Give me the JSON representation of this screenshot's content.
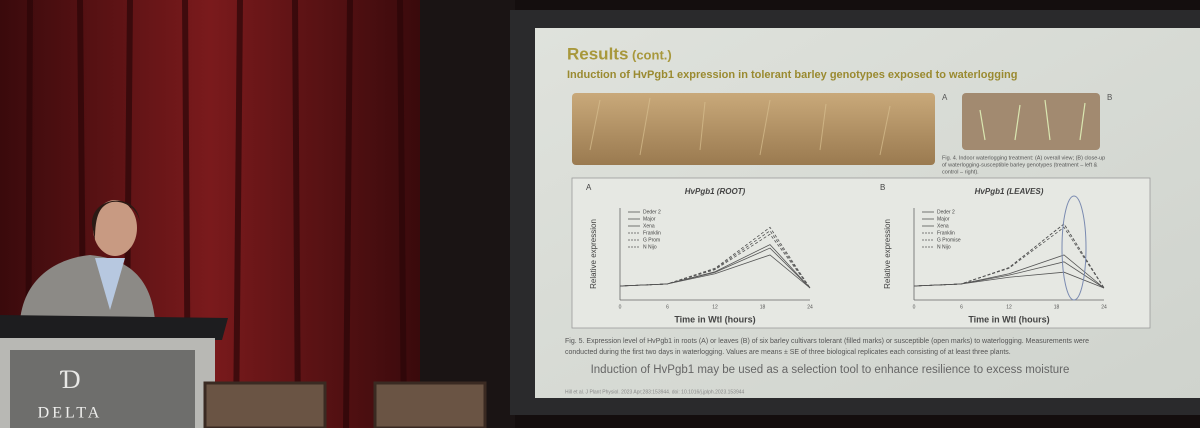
{
  "slide": {
    "title": "Results",
    "title_suffix": "(cont.)",
    "subtitle": "Induction of HvPgb1 expression in tolerant barley genotypes exposed to waterlogging",
    "photo_labels": [
      "A",
      "B"
    ],
    "fig4_caption": [
      "Fig. 4. Indoor waterlogging treatment: (A) overall view; (B) close-up",
      "of waterlogging-susceptible barley genotypes (treatment – left &",
      "control – right)."
    ],
    "panels": [
      {
        "label": "A",
        "title": "HvPgb1 (ROOT)",
        "y_label": "Relative expression",
        "x_label": "Time in Wtl (hours)",
        "x_ticks": [
          "0",
          "6",
          "12",
          "18",
          "24"
        ],
        "legend": [
          "Deder 2",
          "Major",
          "Xena",
          "Franklin",
          "G Prom",
          "N Nijo"
        ]
      },
      {
        "label": "B",
        "title": "HvPgb1 (LEAVES)",
        "y_label": "Relative expression",
        "x_label": "Time in Wtl (hours)",
        "x_ticks": [
          "0",
          "6",
          "12",
          "18",
          "24"
        ],
        "legend": [
          "Deder 2",
          "Major",
          "Xena",
          "Franklin",
          "G Promise",
          "N Nijo"
        ]
      }
    ],
    "fig5_caption": [
      "Fig. 5. Expression level of HvPgb1 in roots (A) or leaves (B) of six barley cultivars tolerant (filled marks) or susceptible (open marks) to waterlogging. Measurements were",
      "conducted during the first two days in waterlogging. Values are means ± SE of three biological replicates each consisting of at least three plants."
    ],
    "statement": "Induction of HvPgb1 may be used as a selection tool to enhance resilience to excess moisture",
    "reference": "Hill et al. J Plant Physiol. 2023 Apr;283:153944. doi: 10.1016/j.jplph.2023.153944"
  },
  "venue": {
    "logo": "DELTA"
  }
}
